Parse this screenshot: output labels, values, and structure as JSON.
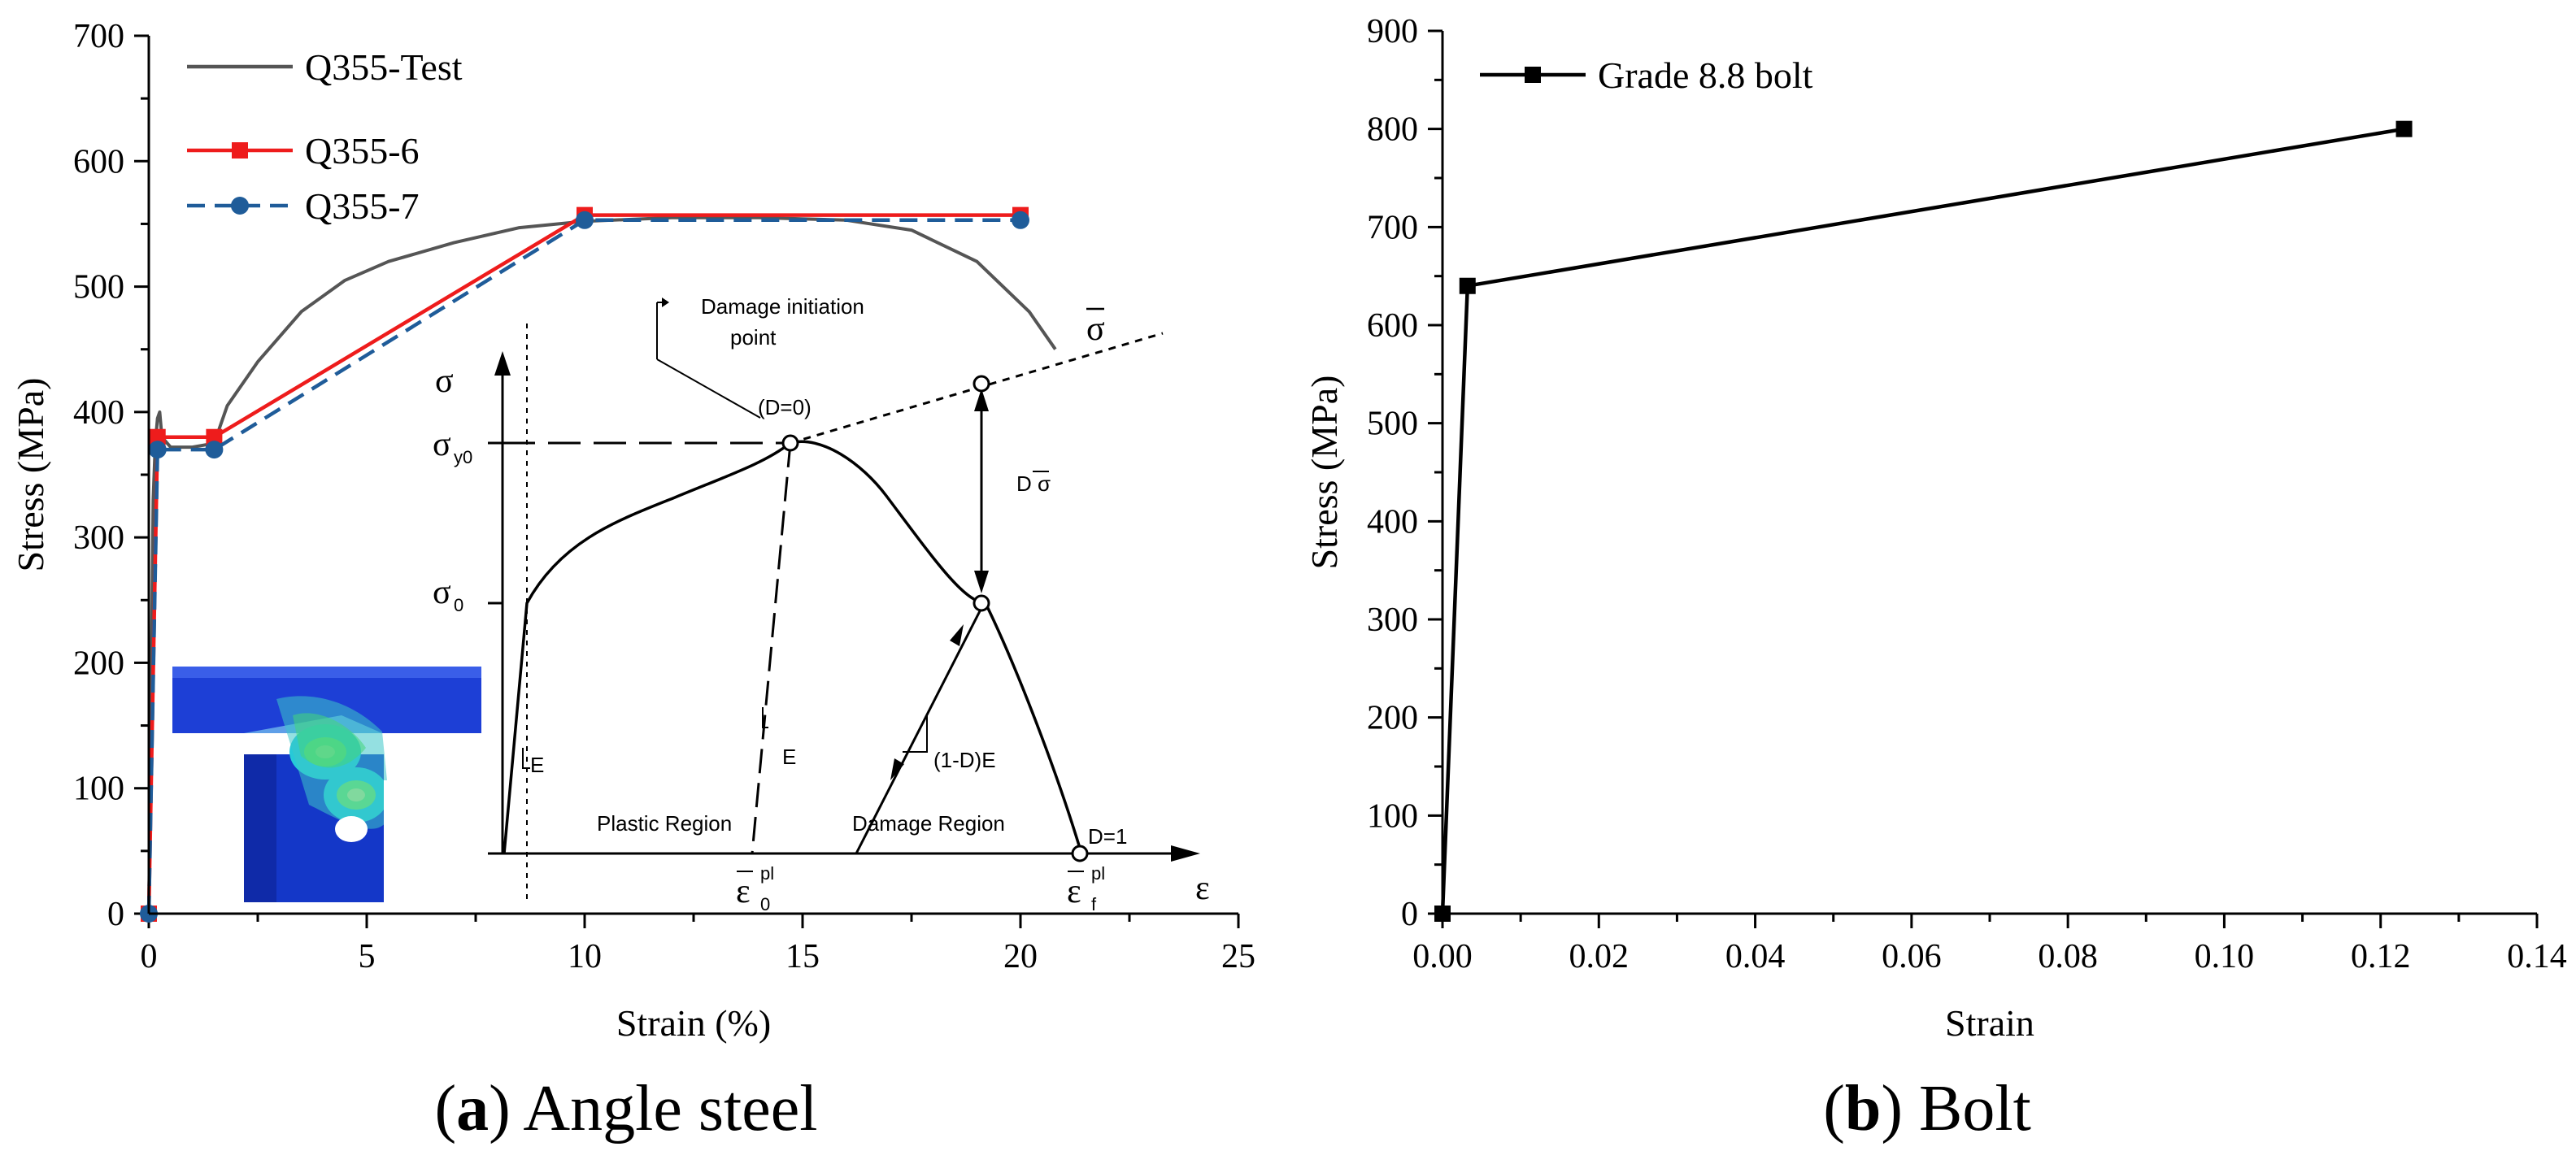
{
  "chart_data": [
    {
      "type": "line",
      "panel_label": "a",
      "caption": "Angle steel",
      "xlabel": "Strain (%)",
      "ylabel": "Stress (MPa)",
      "xlim": [
        0,
        25
      ],
      "ylim": [
        0,
        700
      ],
      "x_ticks": [
        "0",
        "5",
        "10",
        "15",
        "20",
        "25"
      ],
      "y_ticks": [
        "0",
        "100",
        "200",
        "300",
        "400",
        "500",
        "600",
        "700"
      ],
      "series": [
        {
          "name": "Q355-Test",
          "color": "#555555",
          "style": "solid",
          "x": [
            0,
            0.1,
            0.15,
            0.2,
            0.25,
            0.3,
            0.5,
            1.0,
            1.5,
            1.8,
            2.5,
            3.5,
            4.5,
            5.5,
            7.0,
            8.5,
            10.0,
            12.0,
            14.0,
            16.0,
            17.5,
            19.0,
            20.2,
            20.8
          ],
          "values": [
            0,
            330,
            375,
            395,
            400,
            380,
            372,
            372,
            375,
            405,
            440,
            480,
            505,
            520,
            535,
            547,
            552,
            555,
            555,
            553,
            545,
            520,
            480,
            450
          ]
        },
        {
          "name": "Q355-6",
          "color": "#ee1c1c",
          "style": "solid-square",
          "x": [
            0,
            0.2,
            1.5,
            10.0,
            20.0
          ],
          "values": [
            0,
            380,
            380,
            557,
            557
          ]
        },
        {
          "name": "Q355-7",
          "color": "#1f5c99",
          "style": "dashed-circle",
          "x": [
            0,
            0.2,
            1.5,
            10.0,
            20.0
          ],
          "values": [
            0,
            370,
            370,
            553,
            553
          ]
        }
      ]
    },
    {
      "type": "line",
      "panel_label": "b",
      "caption": "Bolt",
      "xlabel": "Strain",
      "ylabel": "Stress (MPa)",
      "xlim": [
        0,
        0.14
      ],
      "ylim": [
        0,
        900
      ],
      "x_ticks": [
        "0.00",
        "0.02",
        "0.04",
        "0.06",
        "0.08",
        "0.10",
        "0.12",
        "0.14"
      ],
      "y_ticks": [
        "0",
        "100",
        "200",
        "300",
        "400",
        "500",
        "600",
        "700",
        "800",
        "900"
      ],
      "series": [
        {
          "name": "Grade 8.8 bolt",
          "color": "#000000",
          "style": "solid-square",
          "x": [
            0,
            0.0032,
            0.123
          ],
          "values": [
            0,
            640,
            800
          ]
        }
      ]
    }
  ],
  "damage_schematic": {
    "damage_initiation": "Damage initiation",
    "point": "point",
    "d0": "(D=0)",
    "sigma": "σ",
    "sigma_bar": "σ",
    "sigma_y0": "σ",
    "sigma_y0_sub": "y0",
    "sigma_0": "σ",
    "sigma_0_sub": "0",
    "d_sigma": "D σ",
    "e": "E",
    "e2": "E",
    "one_minus_d": "(1-D)E",
    "plastic_region": "Plastic Region",
    "damage_region": "Damage Region",
    "d1": "D=1",
    "eps_0": "ε",
    "eps_0_sup": "pl",
    "eps_0_sub": "0",
    "eps_f": "ε",
    "eps_f_sup": "pl",
    "eps_f_sub": "f",
    "eps": "ε"
  }
}
